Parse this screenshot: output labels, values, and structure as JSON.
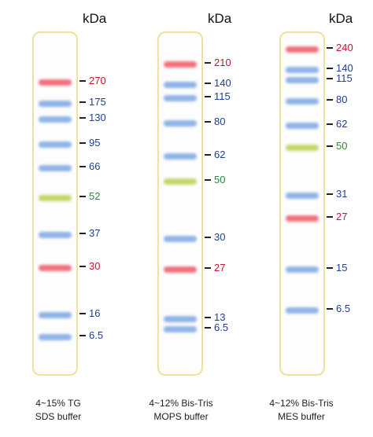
{
  "unit_label": "kDa",
  "colors": {
    "blue": "#1d3f93",
    "red": "#c5172a",
    "green": "#2b8a3b"
  },
  "lanes": [
    {
      "caption": [
        "4~15% TG",
        "SDS buffer"
      ],
      "markers": [
        {
          "kda": "270",
          "color": "red"
        },
        {
          "kda": "175",
          "color": "blue"
        },
        {
          "kda": "130",
          "color": "blue"
        },
        {
          "kda": "95",
          "color": "blue"
        },
        {
          "kda": "66",
          "color": "blue"
        },
        {
          "kda": "52",
          "color": "green"
        },
        {
          "kda": "37",
          "color": "blue"
        },
        {
          "kda": "30",
          "color": "red"
        },
        {
          "kda": "16",
          "color": "blue"
        },
        {
          "kda": "6.5",
          "color": "blue"
        }
      ]
    },
    {
      "caption": [
        "4~12% Bis-Tris",
        "MOPS buffer"
      ],
      "markers": [
        {
          "kda": "210",
          "color": "red"
        },
        {
          "kda": "140",
          "color": "blue"
        },
        {
          "kda": "115",
          "color": "blue"
        },
        {
          "kda": "80",
          "color": "blue"
        },
        {
          "kda": "62",
          "color": "blue"
        },
        {
          "kda": "50",
          "color": "green"
        },
        {
          "kda": "30",
          "color": "blue"
        },
        {
          "kda": "27",
          "color": "red"
        },
        {
          "kda": "13",
          "color": "blue"
        },
        {
          "kda": "6.5",
          "color": "blue"
        }
      ]
    },
    {
      "caption": [
        "4~12% Bis-Tris",
        "MES buffer"
      ],
      "markers": [
        {
          "kda": "240",
          "color": "red"
        },
        {
          "kda": "140",
          "color": "blue"
        },
        {
          "kda": "115",
          "color": "blue"
        },
        {
          "kda": "80",
          "color": "blue"
        },
        {
          "kda": "62",
          "color": "blue"
        },
        {
          "kda": "50",
          "color": "green"
        },
        {
          "kda": "31",
          "color": "blue"
        },
        {
          "kda": "27",
          "color": "red"
        },
        {
          "kda": "15",
          "color": "blue"
        },
        {
          "kda": "6.5",
          "color": "blue"
        }
      ]
    }
  ]
}
